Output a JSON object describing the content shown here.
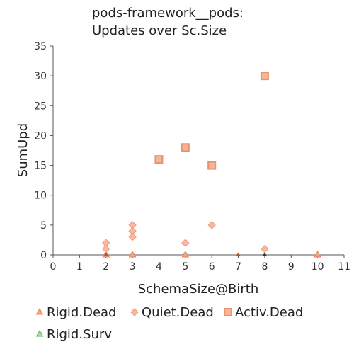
{
  "chart_data": {
    "type": "scatter",
    "title_lines": [
      "pods-framework__pods:",
      "Updates over Sc.Size"
    ],
    "xlabel": "SchemaSize@Birth",
    "ylabel": "SumUpd",
    "xlim": [
      0,
      11
    ],
    "ylim": [
      0,
      35
    ],
    "x_ticks": [
      0,
      1,
      2,
      3,
      4,
      5,
      6,
      7,
      8,
      9,
      10,
      11
    ],
    "y_ticks": [
      0,
      5,
      10,
      15,
      20,
      25,
      30,
      35
    ],
    "grid": false,
    "legend_position": "bottom",
    "series": [
      {
        "name": "Rigid.Dead",
        "marker": "triangle",
        "color": "#f4a582",
        "stroke": "#e8825a",
        "points": [
          [
            2,
            0
          ],
          [
            3,
            0
          ],
          [
            5,
            0
          ],
          [
            10,
            0
          ]
        ]
      },
      {
        "name": "Quiet.Dead",
        "marker": "diamond",
        "color": "#f9b9a0",
        "stroke": "#ef9a7e",
        "points": [
          [
            2,
            2
          ],
          [
            2,
            1
          ],
          [
            3,
            5
          ],
          [
            3,
            4
          ],
          [
            3,
            3
          ],
          [
            5,
            2
          ],
          [
            6,
            5
          ],
          [
            8,
            1
          ]
        ]
      },
      {
        "name": "Activ.Dead",
        "marker": "square",
        "color": "#f6b49b",
        "stroke": "#ea8f6f",
        "points": [
          [
            4,
            16
          ],
          [
            5,
            18
          ],
          [
            6,
            15
          ],
          [
            8,
            30
          ]
        ]
      },
      {
        "name": "Rigid.Surv",
        "marker": "triangle",
        "color": "#a6dba0",
        "stroke": "#5aae61",
        "points": []
      }
    ],
    "extra_marks": [
      {
        "marker": "triangle-small",
        "color": "#d9481c",
        "points": [
          [
            2,
            0
          ],
          [
            7,
            0
          ]
        ]
      },
      {
        "marker": "triangle-small",
        "color": "#333333",
        "points": [
          [
            8,
            0
          ]
        ]
      }
    ]
  }
}
